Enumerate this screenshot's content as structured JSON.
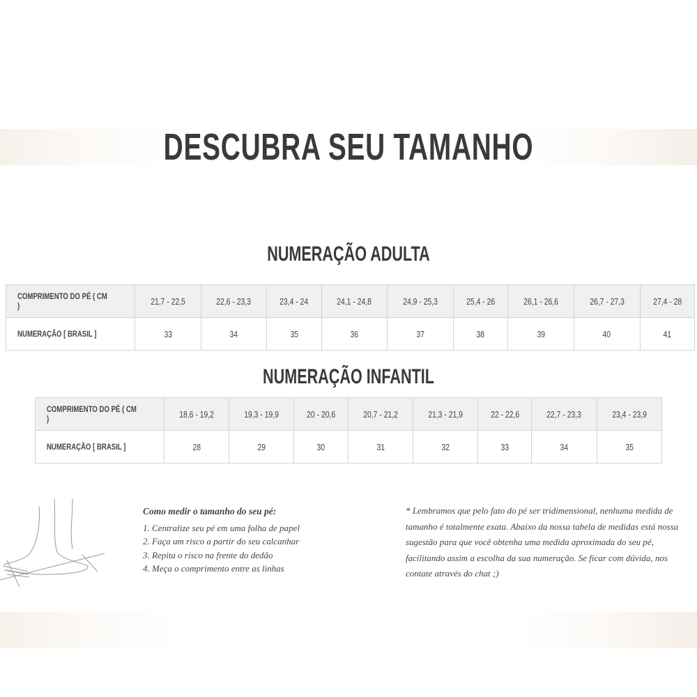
{
  "title": "DESCUBRA SEU TAMANHO",
  "adult": {
    "title": "NUMERAÇÃO ADULTA",
    "row_labels": [
      "COMPRIMENTO DO PÉ ( CM )",
      "NUMERAÇÃO [ BRASIL ]"
    ],
    "lengths": [
      "21,7 - 22,5",
      "22,6 - 23,3",
      "23,4 - 24",
      "24,1 - 24,8",
      "24,9 - 25,3",
      "25,4 - 26",
      "26,1 - 26,6",
      "26,7 - 27,3",
      "27,4 - 28"
    ],
    "sizes": [
      "33",
      "34",
      "35",
      "36",
      "37",
      "38",
      "39",
      "40",
      "41"
    ]
  },
  "infant": {
    "title": "NUMERAÇÃO INFANTIL",
    "row_labels": [
      "COMPRIMENTO DO PÉ ( CM )",
      "NUMERAÇÃO [ BRASIL ]"
    ],
    "lengths": [
      "18,6 - 19,2",
      "19,3 - 19,9",
      "20 - 20,6",
      "20,7 - 21,2",
      "21,3 - 21,9",
      "22 - 22,6",
      "22,7 - 23,3",
      "23,4 - 23,9"
    ],
    "sizes": [
      "28",
      "29",
      "30",
      "31",
      "32",
      "33",
      "34",
      "35"
    ]
  },
  "howto": {
    "heading": "Como medir o tamanho do seu pé:",
    "steps": [
      "1. Centralize seu pé em uma folha de papel",
      "2. Faça um risco a partir do seu calcanhar",
      "3. Repita o risco na frente do dedão",
      "4. Meça o comprimento entre as linhas"
    ]
  },
  "note": "* Lembramos que pelo fato do pé ser tridimensional, nenhuma medida de tamanho é totalmente exata. Abaixo da nossa tabela de medidas está nossa sugestão para que você obtenha uma medida aproximada do seu pé, facilitando assim a escolha da sua numeração. Se ficar com dúvida, nos contate através do chat ;)"
}
